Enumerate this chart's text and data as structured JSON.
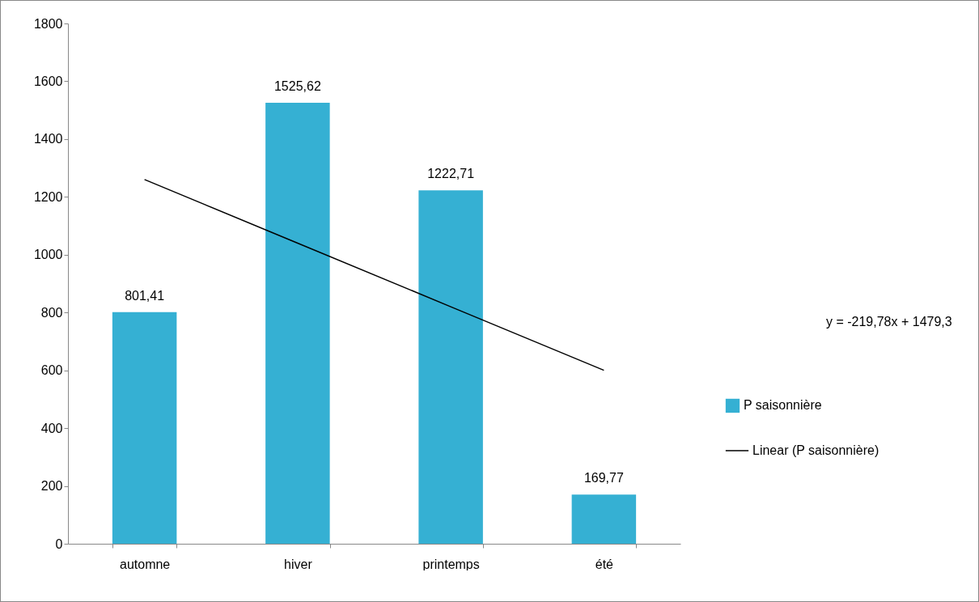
{
  "chart_data": {
    "type": "bar",
    "categories": [
      "automne",
      "hiver",
      "printemps",
      "été"
    ],
    "series": [
      {
        "name": "P saisonnière",
        "color": "#35b0d3",
        "values": [
          801.41,
          1525.62,
          1222.71,
          169.77
        ],
        "value_labels": [
          "801,41",
          "1525,62",
          "1222,71",
          "169,77"
        ]
      },
      {
        "type": "line",
        "name": "Linear (P saisonnière)",
        "color": "#000000",
        "x": [
          "automne",
          "hiver",
          "printemps",
          "été"
        ],
        "values": [
          1260,
          1040,
          820,
          600
        ]
      }
    ],
    "ylim": [
      0,
      1800
    ],
    "yticks": [
      0,
      200,
      400,
      600,
      800,
      1000,
      1200,
      1400,
      1600,
      1800
    ],
    "grid": false,
    "legend": "right",
    "marker": "none",
    "annotations": [
      "y = -219,78x + 1479,3"
    ]
  }
}
